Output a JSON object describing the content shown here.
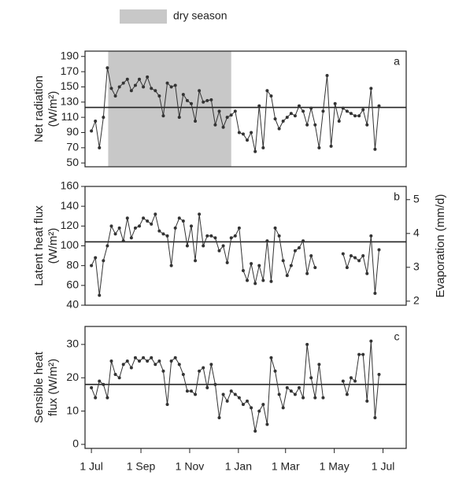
{
  "chart_data": [
    {
      "type": "line",
      "panel": "a",
      "ylabel": [
        "Net radiation",
        "(W/m²)"
      ],
      "shading": {
        "label": "dry season",
        "start": 21,
        "end": 175,
        "color": "#c8c8c8"
      },
      "xlim": [
        -8,
        394
      ],
      "ylim": [
        45,
        197
      ],
      "yticks": [
        50,
        70,
        90,
        110,
        130,
        150,
        170,
        190
      ],
      "hline": 123,
      "color": "#333333",
      "x": [
        0,
        5,
        10,
        15,
        20,
        25,
        30,
        35,
        40,
        45,
        50,
        55,
        60,
        65,
        70,
        75,
        80,
        85,
        90,
        95,
        100,
        105,
        110,
        115,
        120,
        125,
        130,
        135,
        140,
        145,
        150,
        155,
        160,
        165,
        170,
        175,
        180,
        185,
        190,
        195,
        200,
        205,
        210,
        215,
        220,
        225,
        230,
        235,
        240,
        245,
        250,
        255,
        260,
        265,
        270,
        275,
        280,
        285,
        290,
        295,
        300,
        305,
        310,
        315,
        320,
        325,
        330,
        335,
        340,
        345,
        350,
        355,
        360
      ],
      "values": [
        92,
        105,
        70,
        110,
        175,
        148,
        138,
        150,
        155,
        160,
        145,
        152,
        160,
        150,
        163,
        148,
        145,
        138,
        112,
        155,
        150,
        152,
        110,
        140,
        132,
        128,
        105,
        145,
        130,
        132,
        133,
        100,
        118,
        97,
        110,
        113,
        118,
        90,
        88,
        80,
        90,
        65,
        125,
        70,
        145,
        138,
        108,
        95,
        105,
        110,
        115,
        112,
        125,
        118,
        100,
        122,
        100,
        70,
        118,
        165,
        72,
        128,
        105,
        122,
        118,
        115,
        112,
        112,
        120,
        100,
        148,
        68,
        125
      ]
    },
    {
      "type": "line",
      "panel": "b",
      "ylabel": [
        "Latent heat flux",
        "(W/m²)"
      ],
      "y2label": "Evaporation (mm/d)",
      "xlim": [
        -8,
        394
      ],
      "ylim": [
        40,
        160
      ],
      "yticks": [
        40,
        60,
        80,
        100,
        120,
        140,
        160
      ],
      "y2lim": [
        1.88,
        5.39
      ],
      "y2ticks": [
        2,
        3,
        4,
        5
      ],
      "hline": 104,
      "color": "#333333",
      "x": [
        0,
        5,
        10,
        15,
        20,
        25,
        30,
        35,
        40,
        45,
        50,
        55,
        60,
        65,
        70,
        75,
        80,
        85,
        90,
        95,
        100,
        105,
        110,
        115,
        120,
        125,
        130,
        135,
        140,
        145,
        150,
        155,
        160,
        165,
        170,
        175,
        180,
        185,
        190,
        195,
        200,
        205,
        210,
        215,
        220,
        225,
        230,
        235,
        240,
        245,
        250,
        255,
        260,
        265,
        270,
        275,
        280,
        285,
        290,
        295,
        300,
        305,
        310,
        315,
        320,
        325,
        330,
        335,
        340,
        345,
        350,
        355,
        360
      ],
      "values": [
        80,
        88,
        50,
        85,
        100,
        120,
        112,
        118,
        105,
        128,
        108,
        118,
        120,
        128,
        125,
        122,
        132,
        115,
        112,
        110,
        80,
        118,
        128,
        125,
        100,
        120,
        85,
        132,
        100,
        110,
        110,
        108,
        95,
        100,
        83,
        108,
        110,
        118,
        75,
        65,
        82,
        62,
        80,
        65,
        105,
        64,
        118,
        110,
        85,
        70,
        80,
        95,
        98,
        105,
        72,
        90,
        78,
        null,
        null,
        null,
        null,
        null,
        null,
        92,
        78,
        90,
        88,
        85,
        90,
        72,
        110,
        52,
        96
      ]
    },
    {
      "type": "line",
      "panel": "c",
      "ylabel": [
        "Sensible heat",
        "flux (W/m²)"
      ],
      "xlim": [
        -8,
        394
      ],
      "ylim": [
        -1.2,
        35.4
      ],
      "yticks": [
        0,
        10,
        20,
        30
      ],
      "xticks": [
        {
          "value": 0,
          "label": "1 Jul"
        },
        {
          "value": 62,
          "label": "1 Sep"
        },
        {
          "value": 123,
          "label": "1 Nov"
        },
        {
          "value": 184,
          "label": "1 Jan"
        },
        {
          "value": 243,
          "label": "1 Mar"
        },
        {
          "value": 304,
          "label": "1 May"
        },
        {
          "value": 365,
          "label": "1 Jul"
        }
      ],
      "hline": 18,
      "color": "#333333",
      "x": [
        0,
        5,
        10,
        15,
        20,
        25,
        30,
        35,
        40,
        45,
        50,
        55,
        60,
        65,
        70,
        75,
        80,
        85,
        90,
        95,
        100,
        105,
        110,
        115,
        120,
        125,
        130,
        135,
        140,
        145,
        150,
        155,
        160,
        165,
        170,
        175,
        180,
        185,
        190,
        195,
        200,
        205,
        210,
        215,
        220,
        225,
        230,
        235,
        240,
        245,
        250,
        255,
        260,
        265,
        270,
        275,
        280,
        285,
        290,
        295,
        300,
        305,
        310,
        315,
        320,
        325,
        330,
        335,
        340,
        345,
        350,
        355,
        360
      ],
      "values": [
        17,
        14,
        19,
        18,
        14,
        25,
        21,
        20,
        24,
        25,
        23,
        26,
        25,
        26,
        25,
        26,
        24,
        25,
        22,
        12,
        25,
        26,
        24,
        21,
        16,
        16,
        15,
        22,
        23,
        17,
        24,
        18,
        8,
        15,
        13,
        16,
        15,
        14,
        12,
        13,
        11,
        4,
        10,
        12,
        6,
        26,
        22,
        15,
        11,
        17,
        16,
        15,
        17,
        14,
        30,
        20,
        14,
        24,
        14,
        null,
        null,
        null,
        null,
        19,
        15,
        20,
        19,
        27,
        27,
        13,
        31,
        8,
        21
      ]
    }
  ]
}
